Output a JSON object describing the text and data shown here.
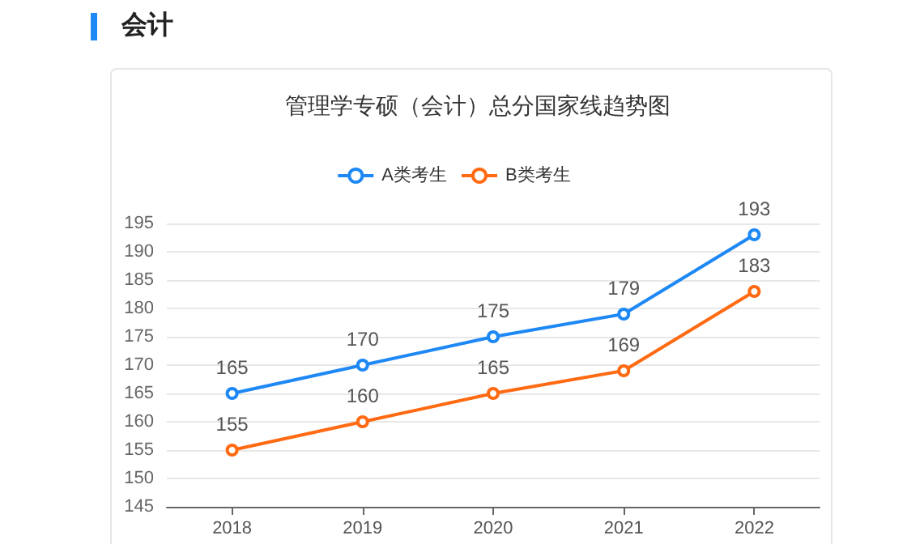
{
  "chart_data": {
    "type": "line",
    "title": "会计",
    "subtitle": "管理学专硕（会计）总分国家线趋势图",
    "categories": [
      "2018",
      "2019",
      "2020",
      "2021",
      "2022"
    ],
    "series": [
      {
        "name": "A类考生",
        "color": "#1e88f5",
        "values": [
          165,
          170,
          175,
          179,
          193
        ]
      },
      {
        "name": "B类考生",
        "color": "#ff6a13",
        "values": [
          155,
          160,
          165,
          169,
          183
        ]
      }
    ],
    "ylim": [
      145,
      195
    ],
    "yticks": [
      145,
      150,
      155,
      160,
      165,
      170,
      175,
      180,
      185,
      190,
      195
    ],
    "grid": "y",
    "legend": "top",
    "marker": "circle",
    "line_style": "solid",
    "data_labels": true
  }
}
